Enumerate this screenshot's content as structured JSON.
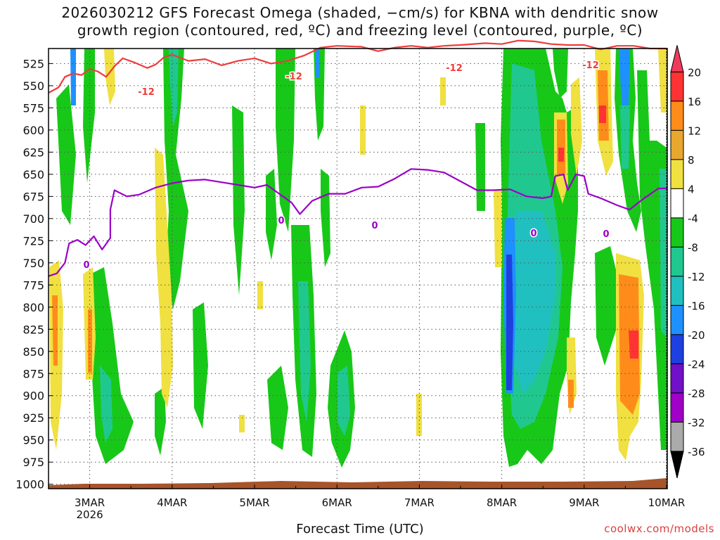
{
  "title_line1": "2026030212 GFS Forecast Omega (shaded, −cm/s) for KBNA with dendritic snow",
  "title_line2": "growth region (contoured, red, ºC) and freezing level (contoured, purple, ºC)",
  "x_title": "Forecast Time (UTC)",
  "credit": "coolwx.com/models",
  "chart_data": {
    "type": "heatmap",
    "y_ticks": [
      525,
      550,
      575,
      600,
      625,
      650,
      675,
      700,
      725,
      750,
      775,
      800,
      825,
      850,
      875,
      900,
      925,
      950,
      975,
      1000
    ],
    "ylim": [
      508,
      1005
    ],
    "x_ticks": [
      {
        "day": 3,
        "label": "3MAR",
        "sublabel": "2026"
      },
      {
        "day": 4,
        "label": "4MAR",
        "sublabel": ""
      },
      {
        "day": 5,
        "label": "5MAR",
        "sublabel": ""
      },
      {
        "day": 6,
        "label": "6MAR",
        "sublabel": ""
      },
      {
        "day": 7,
        "label": "7MAR",
        "sublabel": ""
      },
      {
        "day": 8,
        "label": "8MAR",
        "sublabel": ""
      },
      {
        "day": 9,
        "label": "9MAR",
        "sublabel": ""
      },
      {
        "day": 10,
        "label": "10MAR",
        "sublabel": ""
      }
    ],
    "xlim": [
      2.5,
      10.0
    ],
    "grid": true,
    "colorbar": {
      "levels": [
        20,
        16,
        12,
        8,
        4,
        -4,
        -8,
        -12,
        -16,
        -20,
        -24,
        -28,
        -32,
        -36
      ],
      "colors": [
        "#ee3b5b",
        "#ff3333",
        "#ff8c1a",
        "#e8a830",
        "#f0e040",
        "#ffffff",
        "#18c818",
        "#20c890",
        "#20c0c0",
        "#1f90ff",
        "#1e40e0",
        "#7010c8",
        "#a000c8",
        "#aaaaaa",
        "#000000"
      ]
    },
    "contour_labels": [
      {
        "text": "-12",
        "color": "#ee3b3b"
      },
      {
        "text": "0",
        "color": "#9b00c8"
      }
    ],
    "dendritic_minus12_line": [
      [
        2.5,
        558
      ],
      [
        2.62,
        552
      ],
      [
        2.7,
        540
      ],
      [
        2.8,
        536
      ],
      [
        2.9,
        538
      ],
      [
        3.0,
        531
      ],
      [
        3.1,
        534
      ],
      [
        3.2,
        540
      ],
      [
        3.3,
        528
      ],
      [
        3.4,
        519
      ],
      [
        3.55,
        524
      ],
      [
        3.7,
        530
      ],
      [
        3.8,
        526
      ],
      [
        3.9,
        518
      ],
      [
        4.0,
        515
      ],
      [
        4.2,
        522
      ],
      [
        4.4,
        520
      ],
      [
        4.6,
        527
      ],
      [
        4.8,
        522
      ],
      [
        5.0,
        519
      ],
      [
        5.2,
        525
      ],
      [
        5.4,
        522
      ],
      [
        5.6,
        516
      ],
      [
        5.8,
        507
      ],
      [
        6.0,
        505
      ],
      [
        6.3,
        506
      ],
      [
        6.5,
        511
      ],
      [
        6.7,
        507
      ],
      [
        6.9,
        505
      ],
      [
        7.1,
        507
      ],
      [
        7.3,
        505
      ],
      [
        7.5,
        504
      ],
      [
        7.8,
        502
      ],
      [
        8.0,
        503
      ],
      [
        8.2,
        499
      ],
      [
        8.4,
        500
      ],
      [
        8.6,
        503
      ],
      [
        8.8,
        504
      ],
      [
        9.0,
        504
      ],
      [
        9.2,
        509
      ],
      [
        9.4,
        505
      ],
      [
        9.6,
        505
      ],
      [
        9.8,
        508
      ],
      [
        10.0,
        508
      ]
    ],
    "freezing_0c_line": [
      [
        2.5,
        765
      ],
      [
        2.6,
        762
      ],
      [
        2.7,
        750
      ],
      [
        2.75,
        728
      ],
      [
        2.85,
        724
      ],
      [
        2.95,
        730
      ],
      [
        3.05,
        720
      ],
      [
        3.15,
        735
      ],
      [
        3.25,
        722
      ],
      [
        3.25,
        690
      ],
      [
        3.3,
        668
      ],
      [
        3.45,
        675
      ],
      [
        3.6,
        673
      ],
      [
        3.8,
        665
      ],
      [
        4.0,
        660
      ],
      [
        4.2,
        657
      ],
      [
        4.4,
        656
      ],
      [
        4.6,
        659
      ],
      [
        4.8,
        662
      ],
      [
        5.0,
        665
      ],
      [
        5.15,
        662
      ],
      [
        5.3,
        672
      ],
      [
        5.45,
        682
      ],
      [
        5.55,
        695
      ],
      [
        5.7,
        680
      ],
      [
        5.9,
        672
      ],
      [
        6.1,
        672
      ],
      [
        6.3,
        665
      ],
      [
        6.5,
        664
      ],
      [
        6.7,
        655
      ],
      [
        6.9,
        644
      ],
      [
        7.1,
        645
      ],
      [
        7.3,
        648
      ],
      [
        7.5,
        658
      ],
      [
        7.7,
        668
      ],
      [
        7.9,
        668
      ],
      [
        8.1,
        667
      ],
      [
        8.3,
        675
      ],
      [
        8.5,
        677
      ],
      [
        8.6,
        675
      ],
      [
        8.65,
        652
      ],
      [
        8.75,
        650
      ],
      [
        8.8,
        668
      ],
      [
        8.9,
        650
      ],
      [
        9.0,
        652
      ],
      [
        9.05,
        672
      ],
      [
        9.2,
        677
      ],
      [
        9.4,
        685
      ],
      [
        9.55,
        690
      ],
      [
        9.7,
        679
      ],
      [
        9.9,
        666
      ],
      [
        10.0,
        666
      ]
    ]
  }
}
